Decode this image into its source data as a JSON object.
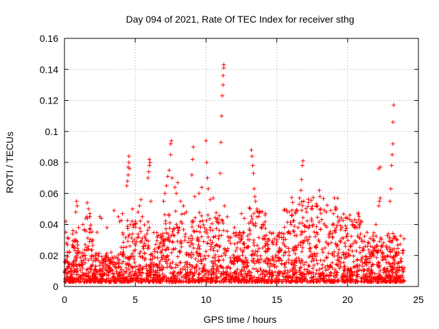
{
  "chart_data": {
    "type": "scatter",
    "title": "Day 094 of 2021, Rate Of TEC Index for receiver sthg",
    "xlabel": "GPS time / hours",
    "ylabel": "ROTI / TECUs",
    "xlim": [
      0,
      25
    ],
    "ylim": [
      0,
      0.16
    ],
    "x_ticks": [
      0,
      5,
      10,
      15,
      20,
      25
    ],
    "x_tick_labels": [
      "0",
      "5",
      "10",
      "15",
      "20",
      "25"
    ],
    "y_ticks": [
      0,
      0.02,
      0.04,
      0.06,
      0.08,
      0.1,
      0.12,
      0.14,
      0.16
    ],
    "y_tick_labels": [
      "0",
      "0.02",
      "0.04",
      "0.06",
      "0.08",
      "0.1",
      "0.12",
      "0.14",
      "0.16"
    ],
    "grid": true,
    "marker": "+",
    "marker_color": "#ff0000",
    "series": [
      {
        "name": "ROTI",
        "points": [
          [
            0.1,
            0.042
          ],
          [
            0.1,
            0.035
          ],
          [
            0.15,
            0.028
          ],
          [
            0.2,
            0.022
          ],
          [
            0.3,
            0.031
          ],
          [
            0.6,
            0.036
          ],
          [
            0.7,
            0.03
          ],
          [
            0.8,
            0.048
          ],
          [
            0.85,
            0.055
          ],
          [
            0.9,
            0.052
          ],
          [
            1.0,
            0.038
          ],
          [
            1.3,
            0.04
          ],
          [
            1.5,
            0.044
          ],
          [
            1.6,
            0.054
          ],
          [
            1.7,
            0.05
          ],
          [
            1.8,
            0.047
          ],
          [
            2.0,
            0.03
          ],
          [
            2.3,
            0.035
          ],
          [
            2.5,
            0.045
          ],
          [
            2.6,
            0.044
          ],
          [
            3.0,
            0.038
          ],
          [
            3.5,
            0.049
          ],
          [
            3.8,
            0.045
          ],
          [
            3.9,
            0.042
          ],
          [
            4.1,
            0.047
          ],
          [
            4.4,
            0.065
          ],
          [
            4.45,
            0.068
          ],
          [
            4.5,
            0.072
          ],
          [
            4.5,
            0.077
          ],
          [
            4.55,
            0.08
          ],
          [
            4.55,
            0.084
          ],
          [
            4.6,
            0.076
          ],
          [
            4.8,
            0.05
          ],
          [
            5.0,
            0.042
          ],
          [
            5.2,
            0.048
          ],
          [
            5.3,
            0.052
          ],
          [
            5.4,
            0.056
          ],
          [
            5.5,
            0.045
          ],
          [
            5.9,
            0.07
          ],
          [
            5.95,
            0.074
          ],
          [
            6.0,
            0.078
          ],
          [
            6.0,
            0.082
          ],
          [
            6.05,
            0.08
          ],
          [
            6.1,
            0.055
          ],
          [
            7.0,
            0.055
          ],
          [
            7.1,
            0.06
          ],
          [
            7.2,
            0.065
          ],
          [
            7.3,
            0.071
          ],
          [
            7.4,
            0.075
          ],
          [
            7.5,
            0.085
          ],
          [
            7.5,
            0.092
          ],
          [
            7.55,
            0.094
          ],
          [
            7.6,
            0.07
          ],
          [
            7.8,
            0.064
          ],
          [
            7.9,
            0.06
          ],
          [
            8.0,
            0.067
          ],
          [
            8.2,
            0.055
          ],
          [
            8.4,
            0.052
          ],
          [
            8.6,
            0.048
          ],
          [
            9.0,
            0.072
          ],
          [
            9.05,
            0.082
          ],
          [
            9.1,
            0.09
          ],
          [
            9.2,
            0.058
          ],
          [
            9.5,
            0.06
          ],
          [
            9.7,
            0.064
          ],
          [
            10.0,
            0.094
          ],
          [
            10.05,
            0.08
          ],
          [
            10.1,
            0.07
          ],
          [
            10.15,
            0.063
          ],
          [
            10.3,
            0.056
          ],
          [
            10.5,
            0.057
          ],
          [
            11.0,
            0.073
          ],
          [
            11.05,
            0.093
          ],
          [
            11.1,
            0.11
          ],
          [
            11.15,
            0.123
          ],
          [
            11.2,
            0.13
          ],
          [
            11.2,
            0.136
          ],
          [
            11.25,
            0.141
          ],
          [
            11.25,
            0.143
          ],
          [
            11.3,
            0.052
          ],
          [
            11.5,
            0.045
          ],
          [
            12.0,
            0.038
          ],
          [
            12.5,
            0.047
          ],
          [
            12.7,
            0.044
          ],
          [
            13.2,
            0.088
          ],
          [
            13.25,
            0.084
          ],
          [
            13.3,
            0.078
          ],
          [
            13.35,
            0.073
          ],
          [
            13.4,
            0.063
          ],
          [
            13.45,
            0.058
          ],
          [
            13.5,
            0.055
          ],
          [
            13.6,
            0.05
          ],
          [
            13.8,
            0.048
          ],
          [
            14.0,
            0.04
          ],
          [
            14.5,
            0.035
          ],
          [
            15.0,
            0.03
          ],
          [
            15.5,
            0.034
          ],
          [
            16.0,
            0.04
          ],
          [
            16.3,
            0.048
          ],
          [
            16.6,
            0.057
          ],
          [
            16.7,
            0.062
          ],
          [
            16.75,
            0.069
          ],
          [
            16.8,
            0.078
          ],
          [
            16.85,
            0.081
          ],
          [
            16.9,
            0.055
          ],
          [
            17.1,
            0.048
          ],
          [
            17.5,
            0.05
          ],
          [
            17.8,
            0.052
          ],
          [
            18.0,
            0.062
          ],
          [
            18.05,
            0.058
          ],
          [
            18.1,
            0.05
          ],
          [
            18.5,
            0.048
          ],
          [
            18.8,
            0.049
          ],
          [
            19.0,
            0.047
          ],
          [
            19.3,
            0.045
          ],
          [
            19.6,
            0.038
          ],
          [
            20.0,
            0.034
          ],
          [
            20.3,
            0.042
          ],
          [
            20.4,
            0.04
          ],
          [
            20.5,
            0.043
          ],
          [
            21.0,
            0.03
          ],
          [
            21.5,
            0.028
          ],
          [
            22.0,
            0.04
          ],
          [
            22.2,
            0.052
          ],
          [
            22.25,
            0.055
          ],
          [
            22.3,
            0.057
          ],
          [
            22.2,
            0.076
          ],
          [
            22.3,
            0.077
          ],
          [
            23.0,
            0.055
          ],
          [
            23.05,
            0.063
          ],
          [
            23.1,
            0.078
          ],
          [
            23.15,
            0.085
          ],
          [
            23.2,
            0.092
          ],
          [
            23.2,
            0.106
          ],
          [
            23.25,
            0.117
          ],
          [
            23.5,
            0.03
          ],
          [
            23.8,
            0.016
          ],
          [
            24.0,
            0.012
          ]
        ]
      }
    ]
  }
}
